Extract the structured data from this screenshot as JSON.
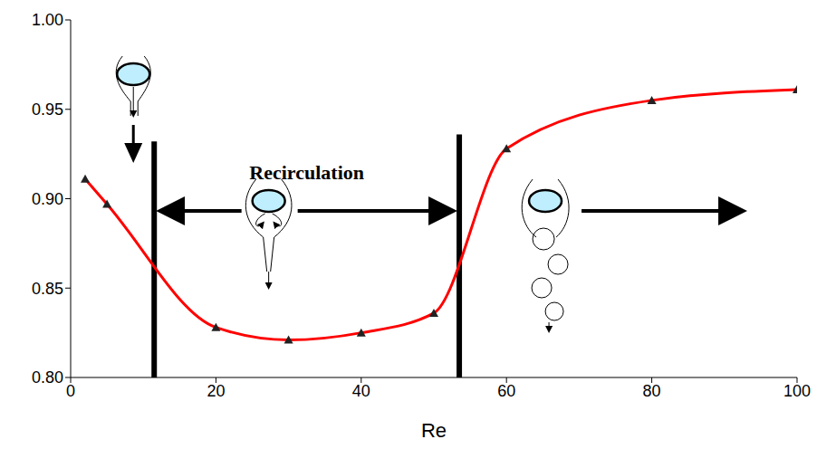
{
  "chart_data": {
    "type": "line",
    "x_label": "Re",
    "annotations": [
      {
        "text": "Recirculation"
      }
    ],
    "x": [
      2,
      5,
      20,
      30,
      40,
      50,
      60,
      80,
      100
    ],
    "values": [
      0.911,
      0.897,
      0.828,
      0.821,
      0.825,
      0.836,
      0.928,
      0.955,
      0.961
    ],
    "color": "#ff0000",
    "marker": "triangle",
    "xlim": [
      0,
      100
    ],
    "xticks": [
      0,
      20,
      40,
      60,
      80,
      100
    ],
    "ylim": [
      0.8,
      1.0
    ],
    "yticks": [
      {
        "value": 0.8,
        "label": "0.80"
      },
      {
        "value": 0.85,
        "label": "0.85"
      },
      {
        "value": 0.9,
        "label": "0.90"
      },
      {
        "value": 0.95,
        "label": "0.95"
      },
      {
        "value": 1.0,
        "label": "1.00"
      }
    ],
    "boundaries": [
      {
        "x": 11.5,
        "y": [
          0.8,
          0.932
        ]
      },
      {
        "x": 53.5,
        "y": [
          0.8,
          0.936
        ]
      }
    ],
    "grid": false
  }
}
